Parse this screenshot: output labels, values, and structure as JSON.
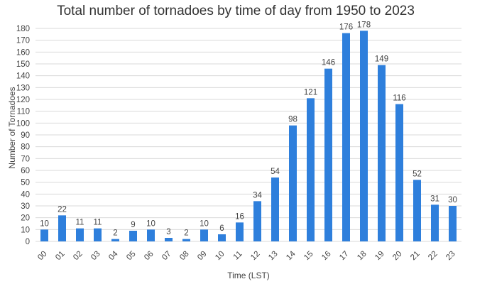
{
  "chart_data": {
    "type": "bar",
    "title": "Total number of tornadoes by time of day from 1950 to 2023",
    "xlabel": "Time (LST)",
    "ylabel": "Number of Tornadoes",
    "categories": [
      "00",
      "01",
      "02",
      "03",
      "04",
      "05",
      "06",
      "07",
      "08",
      "09",
      "10",
      "11",
      "12",
      "13",
      "14",
      "15",
      "16",
      "17",
      "18",
      "19",
      "20",
      "21",
      "22",
      "23"
    ],
    "values": [
      10,
      22,
      11,
      11,
      2,
      9,
      10,
      3,
      2,
      10,
      6,
      16,
      34,
      54,
      98,
      121,
      146,
      176,
      178,
      149,
      116,
      52,
      31,
      30
    ],
    "ylim": [
      0,
      180
    ],
    "yticks": [
      0,
      10,
      20,
      30,
      40,
      50,
      60,
      70,
      80,
      90,
      100,
      110,
      120,
      130,
      140,
      150,
      160,
      170,
      180
    ],
    "grid": true,
    "bar_color": "#2e7fdc"
  }
}
